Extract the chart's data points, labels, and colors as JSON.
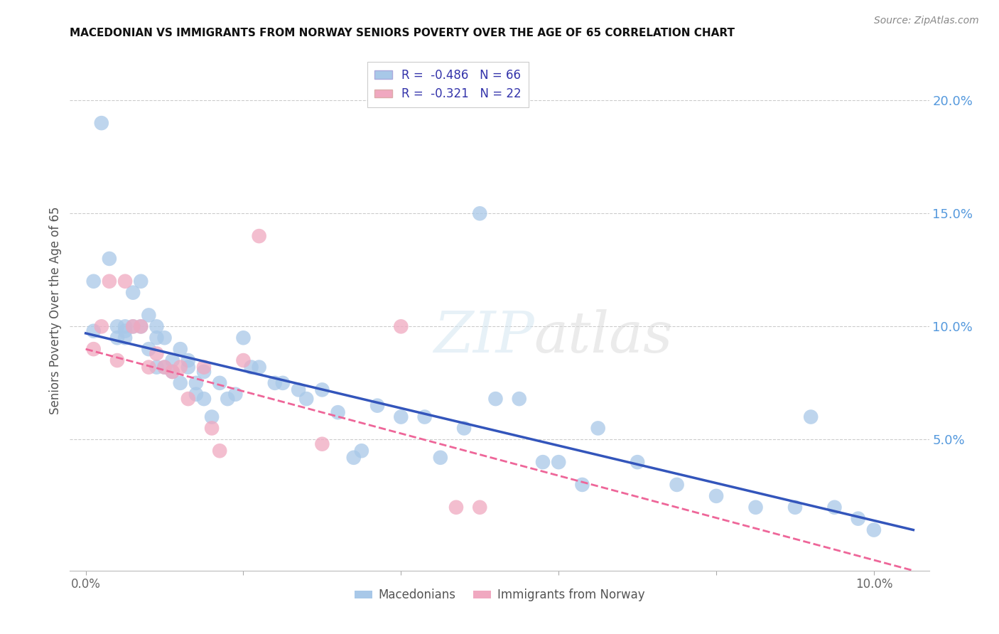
{
  "title": "MACEDONIAN VS IMMIGRANTS FROM NORWAY SENIORS POVERTY OVER THE AGE OF 65 CORRELATION CHART",
  "source": "Source: ZipAtlas.com",
  "ylabel": "Seniors Poverty Over the Age of 65",
  "watermark": "ZIPatlas",
  "legend_blue_label": "R =  -0.486   N = 66",
  "legend_pink_label": "R =  -0.321   N = 22",
  "legend_blue_entry": "Macedonians",
  "legend_pink_entry": "Immigrants from Norway",
  "xlim": [
    -0.002,
    0.107
  ],
  "ylim": [
    -0.008,
    0.222
  ],
  "blue_color": "#a8c8e8",
  "pink_color": "#f0a8c0",
  "blue_line_color": "#3355bb",
  "pink_line_color": "#ee6699",
  "grid_color": "#cccccc",
  "right_axis_color": "#5599dd",
  "title_color": "#111111",
  "source_color": "#888888",
  "macedonian_x": [
    0.001,
    0.001,
    0.002,
    0.003,
    0.004,
    0.004,
    0.005,
    0.005,
    0.005,
    0.006,
    0.006,
    0.007,
    0.007,
    0.008,
    0.008,
    0.009,
    0.009,
    0.009,
    0.01,
    0.01,
    0.011,
    0.011,
    0.012,
    0.012,
    0.013,
    0.013,
    0.014,
    0.014,
    0.015,
    0.015,
    0.016,
    0.017,
    0.018,
    0.019,
    0.02,
    0.021,
    0.022,
    0.024,
    0.025,
    0.027,
    0.028,
    0.03,
    0.032,
    0.034,
    0.035,
    0.037,
    0.04,
    0.043,
    0.045,
    0.048,
    0.05,
    0.052,
    0.055,
    0.058,
    0.06,
    0.063,
    0.065,
    0.07,
    0.075,
    0.08,
    0.085,
    0.09,
    0.092,
    0.095,
    0.098,
    0.1
  ],
  "macedonian_y": [
    0.12,
    0.098,
    0.19,
    0.13,
    0.1,
    0.095,
    0.1,
    0.095,
    0.098,
    0.115,
    0.1,
    0.12,
    0.1,
    0.105,
    0.09,
    0.095,
    0.082,
    0.1,
    0.095,
    0.082,
    0.085,
    0.08,
    0.09,
    0.075,
    0.085,
    0.082,
    0.075,
    0.07,
    0.08,
    0.068,
    0.06,
    0.075,
    0.068,
    0.07,
    0.095,
    0.082,
    0.082,
    0.075,
    0.075,
    0.072,
    0.068,
    0.072,
    0.062,
    0.042,
    0.045,
    0.065,
    0.06,
    0.06,
    0.042,
    0.055,
    0.15,
    0.068,
    0.068,
    0.04,
    0.04,
    0.03,
    0.055,
    0.04,
    0.03,
    0.025,
    0.02,
    0.02,
    0.06,
    0.02,
    0.015,
    0.01
  ],
  "norway_x": [
    0.001,
    0.002,
    0.003,
    0.004,
    0.005,
    0.006,
    0.007,
    0.008,
    0.009,
    0.01,
    0.011,
    0.012,
    0.013,
    0.015,
    0.016,
    0.017,
    0.02,
    0.022,
    0.03,
    0.04,
    0.047,
    0.05
  ],
  "norway_y": [
    0.09,
    0.1,
    0.12,
    0.085,
    0.12,
    0.1,
    0.1,
    0.082,
    0.088,
    0.082,
    0.08,
    0.082,
    0.068,
    0.082,
    0.055,
    0.045,
    0.085,
    0.14,
    0.048,
    0.1,
    0.02,
    0.02
  ],
  "blue_line_x": [
    0.0,
    0.105
  ],
  "blue_line_y": [
    0.097,
    0.01
  ],
  "pink_line_x": [
    0.0,
    0.105
  ],
  "pink_line_y": [
    0.09,
    -0.008
  ]
}
